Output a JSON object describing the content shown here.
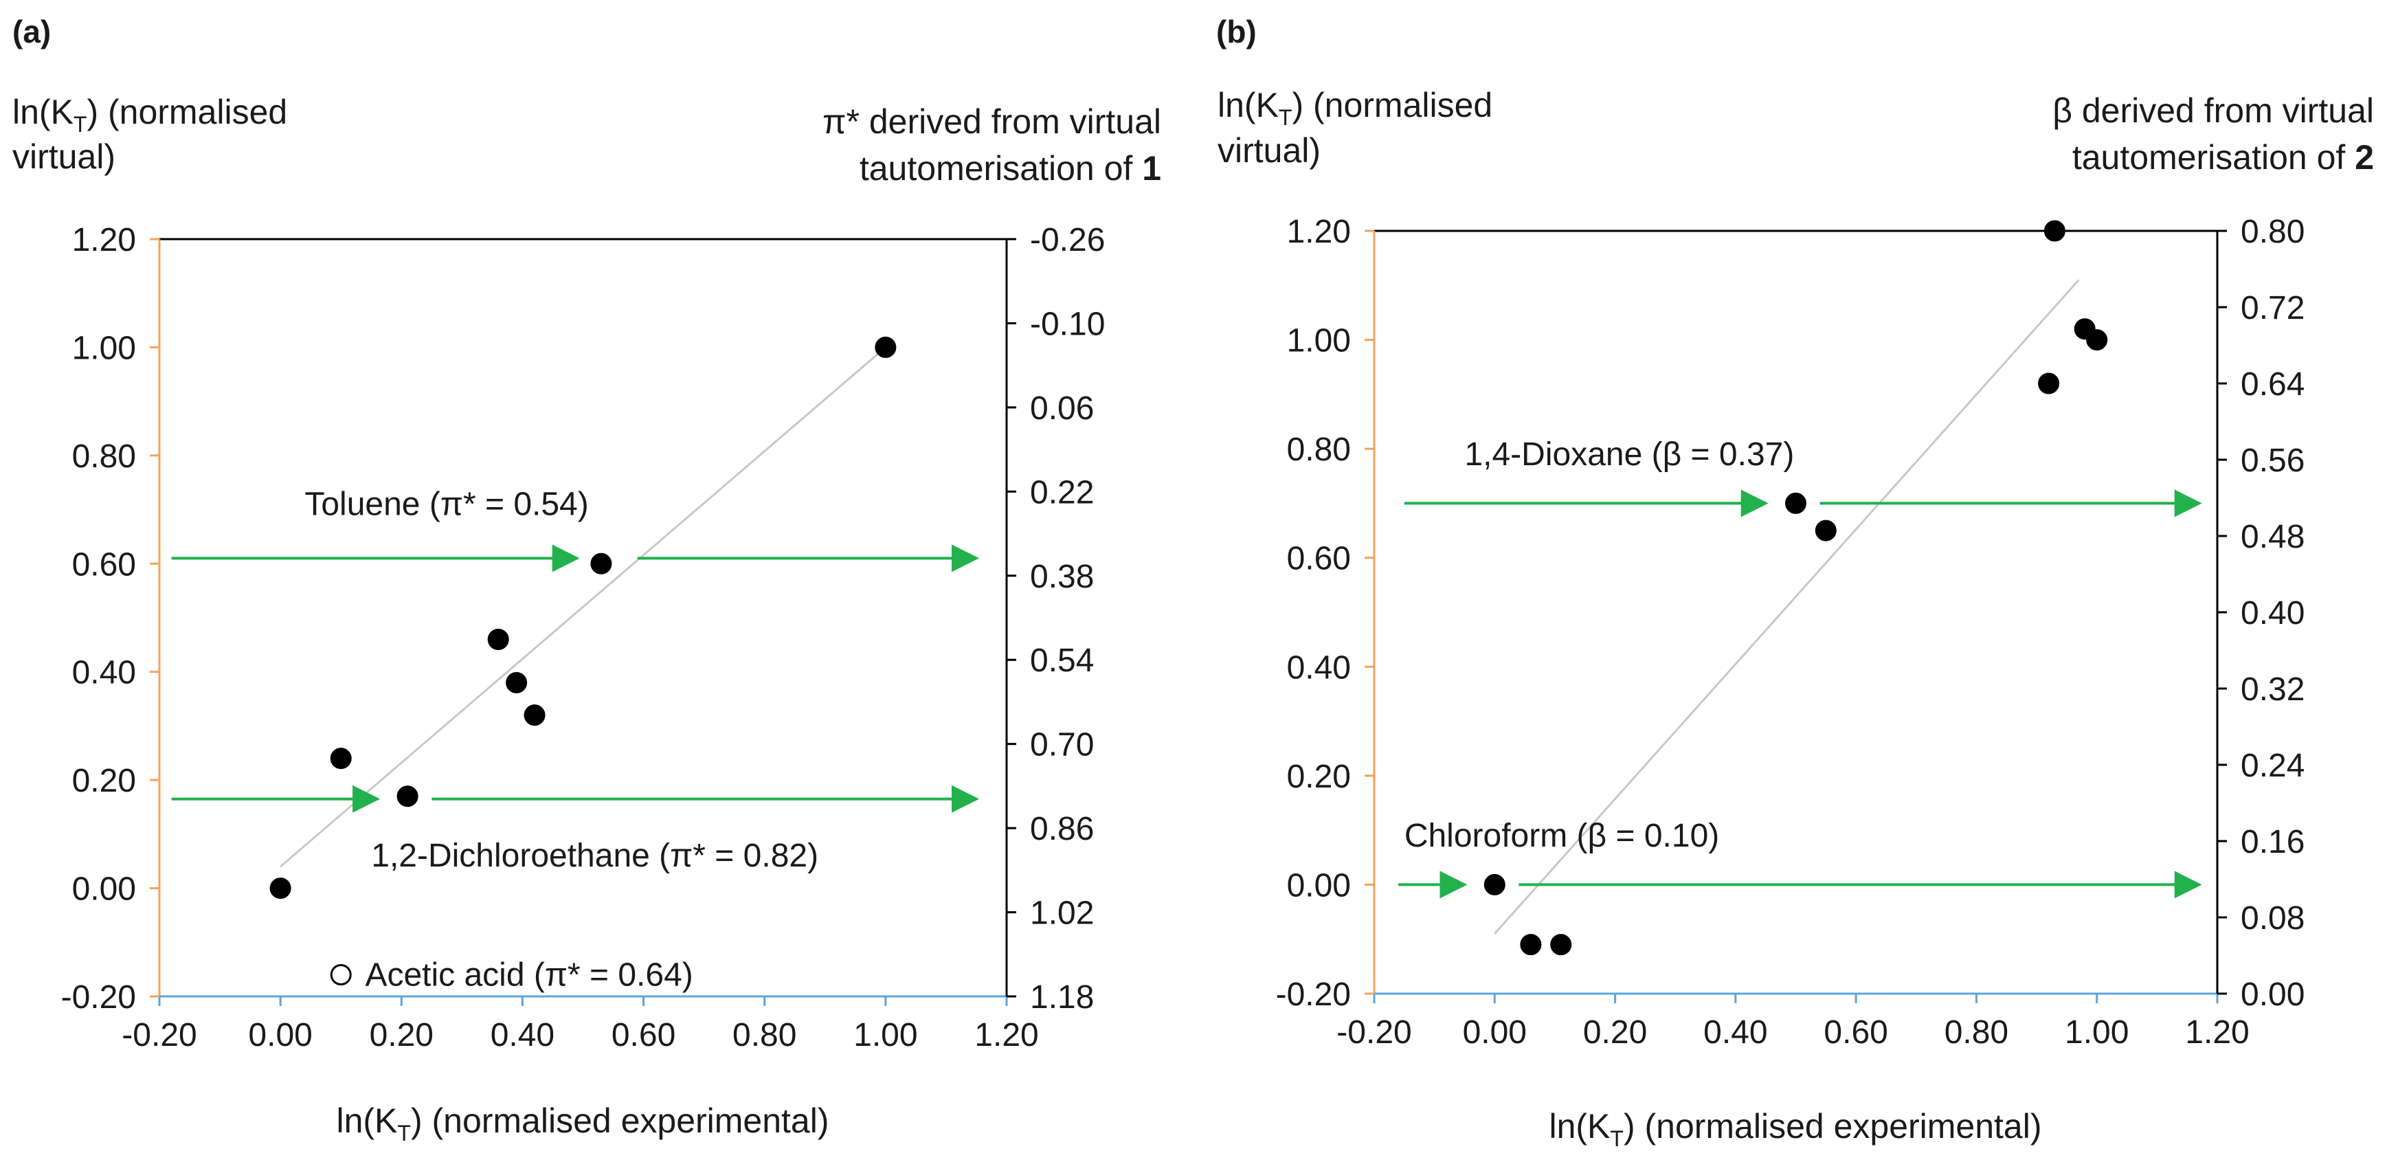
{
  "colors": {
    "left_axis": "#f4a35c",
    "bottom_axis": "#5aa5e0",
    "arrow": "#22b14c",
    "fit_line": "#c8c8c8",
    "frame": "#000000",
    "point": "#000000"
  },
  "chart_data": [
    {
      "panel": "(a)",
      "type": "scatter",
      "left_title": [
        "ln(K",
        "T",
        ") (normalised",
        "virtual)"
      ],
      "right_title": [
        "π* derived from virtual",
        "tautomerisation of ",
        "1"
      ],
      "xlabel": [
        "ln(K",
        "T",
        ") (normalised experimental)"
      ],
      "xlim": [
        -0.2,
        1.2
      ],
      "ylim": [
        -0.2,
        1.2
      ],
      "x_ticks": [
        "-0.20",
        "0.00",
        "0.20",
        "0.40",
        "0.60",
        "0.80",
        "1.00",
        "1.20"
      ],
      "y_ticks": [
        "-0.20",
        "0.00",
        "0.20",
        "0.40",
        "0.60",
        "0.80",
        "1.00",
        "1.20"
      ],
      "right_ticks": [
        "1.18",
        "1.02",
        "0.86",
        "0.70",
        "0.54",
        "0.38",
        "0.22",
        "0.06",
        "-0.10",
        "-0.26"
      ],
      "points": [
        {
          "x": 0.0,
          "y": 0.0,
          "filled": true
        },
        {
          "x": 0.1,
          "y": 0.24,
          "filled": true
        },
        {
          "x": 0.21,
          "y": 0.17,
          "filled": true
        },
        {
          "x": 0.36,
          "y": 0.46,
          "filled": true
        },
        {
          "x": 0.39,
          "y": 0.38,
          "filled": true
        },
        {
          "x": 0.42,
          "y": 0.32,
          "filled": true
        },
        {
          "x": 0.53,
          "y": 0.6,
          "filled": true
        },
        {
          "x": 1.0,
          "y": 1.0,
          "filled": true
        },
        {
          "x": 0.1,
          "y": -0.16,
          "filled": false
        }
      ],
      "fit_line": [
        [
          0.0,
          0.04
        ],
        [
          1.0,
          1.0
        ]
      ],
      "arrows": [
        {
          "y": 0.61,
          "x_from": -0.18,
          "x_to": 0.49
        },
        {
          "y": 0.61,
          "x_from": 0.59,
          "x_to": 1.15
        },
        {
          "y": 0.165,
          "x_from": -0.18,
          "x_to": 0.16
        },
        {
          "y": 0.165,
          "x_from": 0.25,
          "x_to": 1.15
        }
      ],
      "annotations": [
        {
          "text": "Toluene (π* = 0.54)",
          "x": 0.04,
          "y": 0.69
        },
        {
          "text": "1,2-Dichloroethane (π* = 0.82)",
          "x": 0.15,
          "y": 0.04
        },
        {
          "text": "Acetic acid (π* = 0.64)",
          "x": 0.14,
          "y": -0.18
        }
      ]
    },
    {
      "panel": "(b)",
      "type": "scatter",
      "left_title": [
        "ln(K",
        "T",
        ") (normalised",
        "virtual)"
      ],
      "right_title": [
        "β derived from virtual",
        "tautomerisation of ",
        "2"
      ],
      "xlabel": [
        "ln(K",
        "T",
        ") (normalised experimental)"
      ],
      "xlim": [
        -0.2,
        1.2
      ],
      "ylim": [
        -0.2,
        1.2
      ],
      "x_ticks": [
        "-0.20",
        "0.00",
        "0.20",
        "0.40",
        "0.60",
        "0.80",
        "1.00",
        "1.20"
      ],
      "y_ticks": [
        "-0.20",
        "0.00",
        "0.20",
        "0.40",
        "0.60",
        "0.80",
        "1.00",
        "1.20"
      ],
      "right_ticks": [
        "0.00",
        "0.08",
        "0.16",
        "0.24",
        "0.32",
        "0.40",
        "0.48",
        "0.56",
        "0.64",
        "0.72",
        "0.80"
      ],
      "points": [
        {
          "x": 0.0,
          "y": 0.0,
          "filled": true
        },
        {
          "x": 0.06,
          "y": -0.11,
          "filled": true
        },
        {
          "x": 0.11,
          "y": -0.11,
          "filled": true
        },
        {
          "x": 0.5,
          "y": 0.7,
          "filled": true
        },
        {
          "x": 0.55,
          "y": 0.65,
          "filled": true
        },
        {
          "x": 0.92,
          "y": 0.92,
          "filled": true
        },
        {
          "x": 0.93,
          "y": 1.2,
          "filled": true
        },
        {
          "x": 0.98,
          "y": 1.02,
          "filled": true
        },
        {
          "x": 1.0,
          "y": 1.0,
          "filled": true
        }
      ],
      "fit_line": [
        [
          0.0,
          -0.09
        ],
        [
          0.97,
          1.11
        ]
      ],
      "arrows": [
        {
          "y": 0.7,
          "x_from": -0.15,
          "x_to": 0.45
        },
        {
          "y": 0.7,
          "x_from": 0.54,
          "x_to": 1.17
        },
        {
          "y": 0.0,
          "x_from": -0.16,
          "x_to": -0.05
        },
        {
          "y": 0.0,
          "x_from": 0.04,
          "x_to": 1.17
        }
      ],
      "annotations": [
        {
          "text": "1,4-Dioxane (β = 0.37)",
          "x": -0.05,
          "y": 0.77
        },
        {
          "text": "Chloroform (β = 0.10)",
          "x": -0.15,
          "y": 0.07
        }
      ]
    }
  ]
}
